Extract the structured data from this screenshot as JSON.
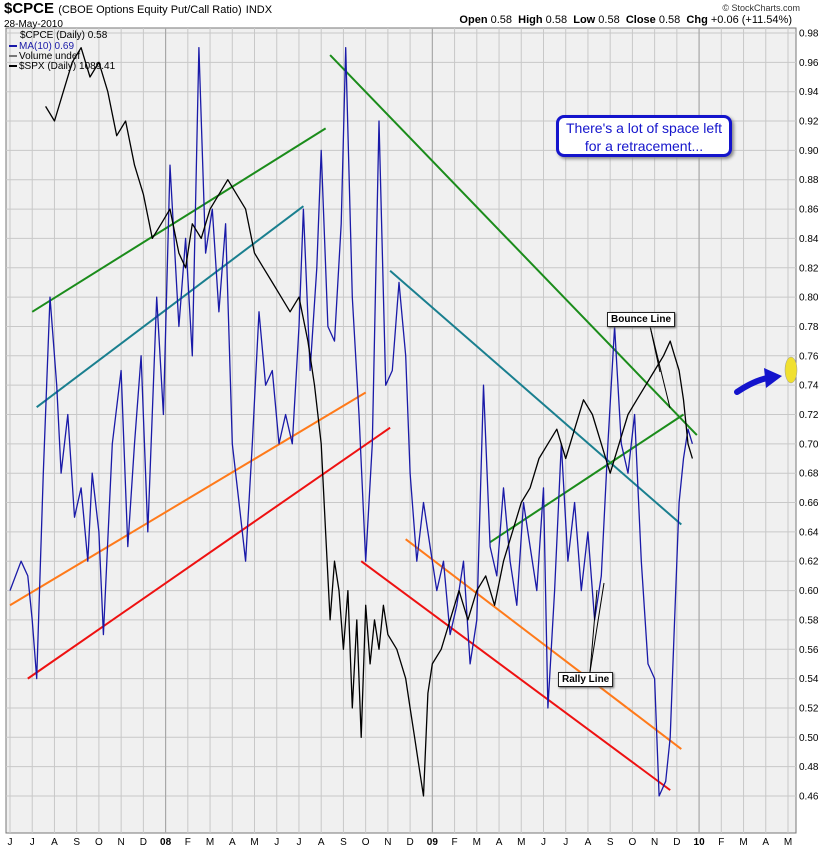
{
  "header": {
    "symbol": "$CPCE",
    "description": "(CBOE Options Equity Put/Call Ratio)",
    "exchange": "INDX",
    "date": "28-May-2010",
    "brand": "© StockCharts.com",
    "open_label": "Open",
    "open_value": "0.58",
    "high_label": "High",
    "high_value": "0.58",
    "low_label": "Low",
    "low_value": "0.58",
    "close_label": "Close",
    "close_value": "0.58",
    "chg_label": "Chg",
    "chg_value": "+0.06 (+11.54%)"
  },
  "legend": {
    "series1": "$CPCE (Daily) 0.58",
    "series2": "MA(10) 0.69",
    "series3": "Volume undef",
    "series4": "$SPX (Daily) 1089.41"
  },
  "annotations": {
    "callout": "There's a lot of space left for a retracement...",
    "bounce_line": "Bounce Line",
    "rally_line": "Rally Line"
  },
  "colors": {
    "ma_line": "#1a1aa8",
    "spx_line": "#000000",
    "green": "#1b8c1b",
    "teal": "#1a7f8f",
    "orange": "#ff7a1a",
    "red": "#ee1111",
    "arrow": "#1414cc",
    "marker": "#f0e030",
    "grid": "#c8c8c8"
  },
  "chart_data": {
    "type": "line",
    "title": "$CPCE (CBOE Options Equity Put/Call Ratio)",
    "ylim": [
      0.45,
      0.985
    ],
    "y_ticks": [
      "0.98",
      "0.96",
      "0.94",
      "0.92",
      "0.90",
      "0.88",
      "0.86",
      "0.84",
      "0.82",
      "0.80",
      "0.78",
      "0.76",
      "0.74",
      "0.72",
      "0.70",
      "0.68",
      "0.66",
      "0.64",
      "0.62",
      "0.60",
      "0.58",
      "0.56",
      "0.54",
      "0.52",
      "0.50",
      "0.48",
      "0.46"
    ],
    "x_ticks": [
      "J",
      "J",
      "A",
      "S",
      "O",
      "N",
      "D",
      "08",
      "F",
      "M",
      "A",
      "M",
      "J",
      "J",
      "A",
      "S",
      "O",
      "N",
      "D",
      "09",
      "F",
      "M",
      "A",
      "M",
      "J",
      "J",
      "A",
      "S",
      "O",
      "N",
      "D",
      "10",
      "F",
      "M",
      "A",
      "M"
    ],
    "x_range": [
      "2007-06",
      "2010-05"
    ],
    "series": [
      {
        "name": "MA(10)",
        "values": [
          [
            0.0,
            0.6
          ],
          [
            0.5,
            0.62
          ],
          [
            0.8,
            0.61
          ],
          [
            1.0,
            0.58
          ],
          [
            1.2,
            0.54
          ],
          [
            1.5,
            0.68
          ],
          [
            1.8,
            0.8
          ],
          [
            2.1,
            0.74
          ],
          [
            2.3,
            0.68
          ],
          [
            2.6,
            0.72
          ],
          [
            2.9,
            0.65
          ],
          [
            3.2,
            0.67
          ],
          [
            3.5,
            0.62
          ],
          [
            3.7,
            0.68
          ],
          [
            4.0,
            0.64
          ],
          [
            4.2,
            0.57
          ],
          [
            4.6,
            0.7
          ],
          [
            5.0,
            0.75
          ],
          [
            5.3,
            0.63
          ],
          [
            5.6,
            0.7
          ],
          [
            5.9,
            0.76
          ],
          [
            6.2,
            0.64
          ],
          [
            6.6,
            0.8
          ],
          [
            6.9,
            0.72
          ],
          [
            7.2,
            0.89
          ],
          [
            7.6,
            0.78
          ],
          [
            7.9,
            0.84
          ],
          [
            8.2,
            0.76
          ],
          [
            8.5,
            0.97
          ],
          [
            8.8,
            0.83
          ],
          [
            9.1,
            0.86
          ],
          [
            9.4,
            0.79
          ],
          [
            9.7,
            0.85
          ],
          [
            10.0,
            0.7
          ],
          [
            10.3,
            0.66
          ],
          [
            10.6,
            0.62
          ],
          [
            10.9,
            0.7
          ],
          [
            11.2,
            0.79
          ],
          [
            11.5,
            0.74
          ],
          [
            11.8,
            0.75
          ],
          [
            12.1,
            0.7
          ],
          [
            12.4,
            0.72
          ],
          [
            12.7,
            0.7
          ],
          [
            13.0,
            0.78
          ],
          [
            13.2,
            0.86
          ],
          [
            13.5,
            0.75
          ],
          [
            13.8,
            0.82
          ],
          [
            14.0,
            0.9
          ],
          [
            14.3,
            0.78
          ],
          [
            14.6,
            0.77
          ],
          [
            14.9,
            0.85
          ],
          [
            15.1,
            0.97
          ],
          [
            15.4,
            0.8
          ],
          [
            15.7,
            0.72
          ],
          [
            16.0,
            0.62
          ],
          [
            16.3,
            0.7
          ],
          [
            16.6,
            0.92
          ],
          [
            16.9,
            0.74
          ],
          [
            17.2,
            0.75
          ],
          [
            17.5,
            0.81
          ],
          [
            17.8,
            0.76
          ],
          [
            18.0,
            0.68
          ],
          [
            18.3,
            0.62
          ],
          [
            18.6,
            0.66
          ],
          [
            18.9,
            0.63
          ],
          [
            19.2,
            0.6
          ],
          [
            19.5,
            0.62
          ],
          [
            19.8,
            0.57
          ],
          [
            20.1,
            0.59
          ],
          [
            20.4,
            0.62
          ],
          [
            20.7,
            0.55
          ],
          [
            21.0,
            0.58
          ],
          [
            21.3,
            0.74
          ],
          [
            21.6,
            0.63
          ],
          [
            21.9,
            0.61
          ],
          [
            22.2,
            0.67
          ],
          [
            22.5,
            0.62
          ],
          [
            22.8,
            0.59
          ],
          [
            23.1,
            0.66
          ],
          [
            23.4,
            0.63
          ],
          [
            23.7,
            0.6
          ],
          [
            24.0,
            0.67
          ],
          [
            24.2,
            0.52
          ],
          [
            24.5,
            0.6
          ],
          [
            24.8,
            0.7
          ],
          [
            25.1,
            0.62
          ],
          [
            25.4,
            0.66
          ],
          [
            25.7,
            0.6
          ],
          [
            26.0,
            0.64
          ],
          [
            26.3,
            0.58
          ],
          [
            26.6,
            0.61
          ],
          [
            26.9,
            0.7
          ],
          [
            27.2,
            0.78
          ],
          [
            27.5,
            0.7
          ],
          [
            27.8,
            0.68
          ],
          [
            28.1,
            0.72
          ],
          [
            28.4,
            0.62
          ],
          [
            28.7,
            0.55
          ],
          [
            29.0,
            0.54
          ],
          [
            29.2,
            0.46
          ],
          [
            29.5,
            0.47
          ],
          [
            29.7,
            0.5
          ],
          [
            29.9,
            0.58
          ],
          [
            30.1,
            0.66
          ],
          [
            30.3,
            0.69
          ],
          [
            30.5,
            0.71
          ],
          [
            30.7,
            0.7
          ]
        ]
      },
      {
        "name": "$SPX (Daily)",
        "values": [
          [
            1.6,
            0.93
          ],
          [
            2.0,
            0.92
          ],
          [
            2.4,
            0.94
          ],
          [
            2.8,
            0.96
          ],
          [
            3.2,
            0.97
          ],
          [
            3.6,
            0.95
          ],
          [
            4.0,
            0.96
          ],
          [
            4.4,
            0.94
          ],
          [
            4.8,
            0.91
          ],
          [
            5.2,
            0.92
          ],
          [
            5.6,
            0.89
          ],
          [
            6.0,
            0.87
          ],
          [
            6.4,
            0.84
          ],
          [
            6.8,
            0.85
          ],
          [
            7.2,
            0.86
          ],
          [
            7.6,
            0.83
          ],
          [
            7.9,
            0.82
          ],
          [
            8.2,
            0.85
          ],
          [
            8.6,
            0.84
          ],
          [
            9.0,
            0.86
          ],
          [
            9.4,
            0.87
          ],
          [
            9.8,
            0.88
          ],
          [
            10.2,
            0.87
          ],
          [
            10.6,
            0.86
          ],
          [
            11.0,
            0.83
          ],
          [
            11.4,
            0.82
          ],
          [
            11.8,
            0.81
          ],
          [
            12.2,
            0.8
          ],
          [
            12.6,
            0.79
          ],
          [
            13.0,
            0.8
          ],
          [
            13.4,
            0.77
          ],
          [
            13.7,
            0.74
          ],
          [
            14.0,
            0.7
          ],
          [
            14.2,
            0.64
          ],
          [
            14.4,
            0.58
          ],
          [
            14.6,
            0.62
          ],
          [
            14.8,
            0.6
          ],
          [
            15.0,
            0.56
          ],
          [
            15.2,
            0.6
          ],
          [
            15.4,
            0.52
          ],
          [
            15.6,
            0.58
          ],
          [
            15.8,
            0.5
          ],
          [
            16.0,
            0.59
          ],
          [
            16.2,
            0.55
          ],
          [
            16.4,
            0.58
          ],
          [
            16.6,
            0.56
          ],
          [
            16.8,
            0.59
          ],
          [
            17.0,
            0.57
          ],
          [
            17.4,
            0.56
          ],
          [
            17.8,
            0.54
          ],
          [
            18.0,
            0.52
          ],
          [
            18.2,
            0.5
          ],
          [
            18.4,
            0.48
          ],
          [
            18.6,
            0.46
          ],
          [
            18.8,
            0.53
          ],
          [
            19.0,
            0.55
          ],
          [
            19.4,
            0.56
          ],
          [
            19.8,
            0.58
          ],
          [
            20.2,
            0.6
          ],
          [
            20.6,
            0.58
          ],
          [
            21.0,
            0.6
          ],
          [
            21.4,
            0.61
          ],
          [
            21.8,
            0.59
          ],
          [
            22.2,
            0.62
          ],
          [
            22.6,
            0.64
          ],
          [
            23.0,
            0.66
          ],
          [
            23.4,
            0.67
          ],
          [
            23.8,
            0.69
          ],
          [
            24.2,
            0.7
          ],
          [
            24.6,
            0.71
          ],
          [
            25.0,
            0.69
          ],
          [
            25.4,
            0.71
          ],
          [
            25.8,
            0.73
          ],
          [
            26.2,
            0.72
          ],
          [
            26.6,
            0.7
          ],
          [
            27.0,
            0.68
          ],
          [
            27.4,
            0.7
          ],
          [
            27.8,
            0.72
          ],
          [
            28.2,
            0.73
          ],
          [
            28.6,
            0.74
          ],
          [
            29.0,
            0.75
          ],
          [
            29.4,
            0.76
          ],
          [
            29.7,
            0.77
          ],
          [
            29.9,
            0.76
          ],
          [
            30.1,
            0.75
          ],
          [
            30.3,
            0.73
          ],
          [
            30.5,
            0.7
          ],
          [
            30.7,
            0.69
          ]
        ]
      }
    ],
    "trendlines": [
      {
        "color": "green",
        "from": [
          1.0,
          0.79
        ],
        "to": [
          14.2,
          0.915
        ]
      },
      {
        "color": "teal",
        "from": [
          1.2,
          0.725
        ],
        "to": [
          13.2,
          0.862
        ]
      },
      {
        "color": "orange",
        "from": [
          0.0,
          0.59
        ],
        "to": [
          16.0,
          0.735
        ]
      },
      {
        "color": "red",
        "from": [
          0.8,
          0.54
        ],
        "to": [
          17.1,
          0.711
        ]
      },
      {
        "color": "green",
        "from": [
          14.4,
          0.965
        ],
        "to": [
          30.9,
          0.706
        ]
      },
      {
        "color": "teal",
        "from": [
          17.1,
          0.818
        ],
        "to": [
          30.2,
          0.645
        ]
      },
      {
        "color": "green",
        "from": [
          21.6,
          0.633
        ],
        "to": [
          30.3,
          0.72
        ]
      },
      {
        "color": "orange",
        "from": [
          17.8,
          0.635
        ],
        "to": [
          30.2,
          0.492
        ]
      },
      {
        "color": "red",
        "from": [
          15.8,
          0.62
        ],
        "to": [
          29.7,
          0.464
        ]
      }
    ]
  }
}
